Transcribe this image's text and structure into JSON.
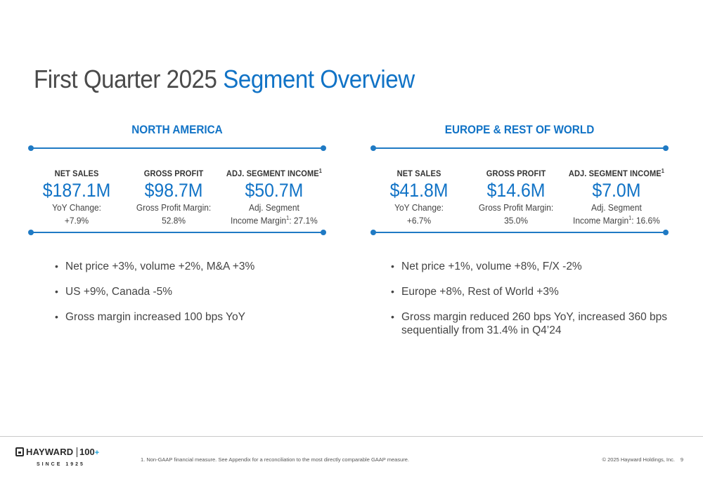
{
  "title": {
    "main": "First Quarter 2025",
    "accent": "Segment Overview"
  },
  "segments": [
    {
      "name": "NORTH AMERICA",
      "metrics": [
        {
          "label": "NET SALES",
          "label_sup": "",
          "value": "$187.1M",
          "sub1": "YoY Change:",
          "sub2": "+7.9%",
          "sub2_sup": "",
          "sub2_tail": ""
        },
        {
          "label": "GROSS PROFIT",
          "label_sup": "",
          "value": "$98.7M",
          "sub1": "Gross Profit Margin:",
          "sub2": "52.8%",
          "sub2_sup": "",
          "sub2_tail": ""
        },
        {
          "label": "ADJ. SEGMENT INCOME",
          "label_sup": "1",
          "value": "$50.7M",
          "sub1": "Adj. Segment",
          "sub2": "Income Margin",
          "sub2_sup": "1",
          "sub2_tail": ": 27.1%"
        }
      ],
      "bullets": [
        "Net price +3%, volume +2%, M&A +3%",
        "US +9%, Canada -5%",
        "Gross margin increased 100 bps YoY"
      ]
    },
    {
      "name": "EUROPE & REST OF WORLD",
      "metrics": [
        {
          "label": "NET SALES",
          "label_sup": "",
          "value": "$41.8M",
          "sub1": "YoY Change:",
          "sub2": "+6.7%",
          "sub2_sup": "",
          "sub2_tail": ""
        },
        {
          "label": "GROSS PROFIT",
          "label_sup": "",
          "value": "$14.6M",
          "sub1": "Gross Profit Margin:",
          "sub2": "35.0%",
          "sub2_sup": "",
          "sub2_tail": ""
        },
        {
          "label": "ADJ. SEGMENT INCOME",
          "label_sup": "1",
          "value": "$7.0M",
          "sub1": "Adj. Segment",
          "sub2": "Income Margin",
          "sub2_sup": "1",
          "sub2_tail": ": 16.6%"
        }
      ],
      "bullets": [
        "Net price +1%, volume +8%, F/X -2%",
        "Europe +8%, Rest of World +3%",
        "Gross margin reduced 260 bps YoY, increased 360 bps sequentially from 31.4% in Q4’24"
      ]
    }
  ],
  "bullet_char": "•",
  "footer": {
    "logo_word": "HAYWARD",
    "logo_100": "100",
    "logo_plus": "+",
    "logo_since": "SINCE 1925",
    "footnote": "1. Non-GAAP financial measure. See Appendix for a reconciliation to the most directly comparable GAAP measure.",
    "copyright": "© 2025 Hayward Holdings, Inc.",
    "page_number": "9"
  },
  "colors": {
    "accent": "#1173c6",
    "rule": "#1f7ac4",
    "text": "#444444"
  }
}
